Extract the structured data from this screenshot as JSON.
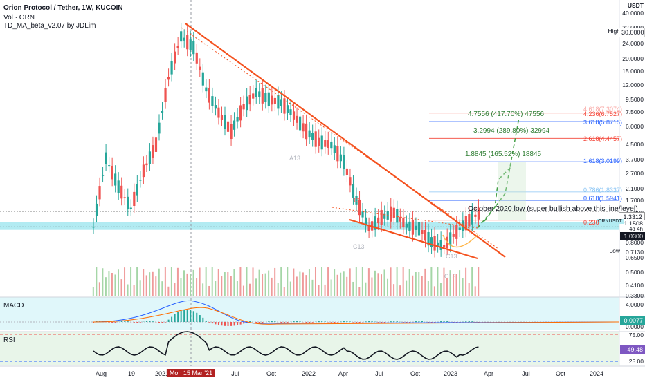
{
  "header": {
    "title": "Orion Protocol / Tether, 1W, KUCOIN",
    "vol_label": "Vol · ORN",
    "indicator_label": "TD_MA_beta_v2.07 by JDLim"
  },
  "axis": {
    "currency": "USDT",
    "price_ticks": [
      "40.0000",
      "32.0000",
      "24.0000",
      "20.0000",
      "15.0000",
      "12.0000",
      "9.5000",
      "7.5000",
      "6.0000",
      "4.5000",
      "3.7000",
      "2.7000",
      "2.1000",
      "1.7000",
      "1.3000",
      "0.8000",
      "0.7130",
      "0.6500",
      "0.5000",
      "0.4100",
      "0.3300"
    ],
    "high_label": "High",
    "high_value": "30.0000",
    "low_label": "Low",
    "current_price": "1.3312",
    "current_price_2": "1.1508",
    "orn_tag": "ORNUSDT",
    "orn_timer": "4d 4h",
    "level_price": "1.0300",
    "date_labels": [
      "Aug",
      "19",
      "2021",
      "Jul",
      "Oct",
      "2022",
      "Apr",
      "Jul",
      "Oct",
      "2023",
      "Apr",
      "Jul",
      "Oct",
      "2024"
    ],
    "date_highlight": "Mon 15 Mar '21"
  },
  "fib": {
    "levels": [
      {
        "label": "4.236(6.7527)",
        "color": "#f44336"
      },
      {
        "label": "3.618(5.8715)",
        "color": "#2962ff"
      },
      {
        "label": "2.618(4.4457)",
        "color": "#f44336"
      },
      {
        "label": "1.618(3.0199)",
        "color": "#2962ff"
      },
      {
        "label": "0.786(1.8337)",
        "color": "#89c4f4"
      },
      {
        "label": "0.618(1.5941)",
        "color": "#2962ff"
      },
      {
        "label": "0.236",
        "color": "#f44336"
      }
    ],
    "top_faint": "4.618(7.3074)"
  },
  "measures": [
    {
      "label": "4.7556 (417.70%) 47556"
    },
    {
      "label": "3.2994 (289.80%) 32994"
    },
    {
      "label": "1.8845 (165.52%) 18845"
    }
  ],
  "annotation": "October 2020 low (super bullish above this line/level)",
  "counts": [
    "A13",
    "13",
    "C13",
    "C13",
    "C13"
  ],
  "macd": {
    "label": "MACD",
    "ticks": [
      "4.0000",
      "0.0000"
    ],
    "value_tag": "0.0077"
  },
  "rsi": {
    "label": "RSI",
    "ticks": [
      "75.00",
      "25.00"
    ],
    "value_tag": "49.48"
  },
  "colors": {
    "up": "#26a69a",
    "down": "#ef5350",
    "trendline": "#f4511e",
    "cyan": "#b2ebf2",
    "green_bg": "#e8f5e9"
  },
  "chart_data": {
    "type": "candlestick",
    "title": "Orion Protocol / Tether, 1W, KUCOIN",
    "y_scale": "log",
    "ylim": [
      0.33,
      40
    ],
    "x_range": [
      "2020-08",
      "2024-02"
    ],
    "series": [
      {
        "name": "ORNUSDT",
        "close_points": [
          [
            "2020-08",
            1.03
          ],
          [
            "2020-09",
            3.2
          ],
          [
            "2020-10",
            2.0
          ],
          [
            "2020-11",
            1.4
          ],
          [
            "2020-12",
            2.6
          ],
          [
            "2021-01",
            4.0
          ],
          [
            "2021-02",
            12.0
          ],
          [
            "2021-03",
            24.0
          ],
          [
            "2021-04",
            20.0
          ],
          [
            "2021-05",
            10.0
          ],
          [
            "2021-06",
            6.8
          ],
          [
            "2021-07",
            5.0
          ],
          [
            "2021-08",
            7.5
          ],
          [
            "2021-09",
            9.5
          ],
          [
            "2021-10",
            8.5
          ],
          [
            "2021-11",
            8.0
          ],
          [
            "2021-12",
            6.5
          ],
          [
            "2022-01",
            5.0
          ],
          [
            "2022-02",
            4.2
          ],
          [
            "2022-03",
            4.0
          ],
          [
            "2022-04",
            3.0
          ],
          [
            "2022-05",
            1.6
          ],
          [
            "2022-06",
            1.0
          ],
          [
            "2022-07",
            1.2
          ],
          [
            "2022-08",
            1.3
          ],
          [
            "2022-09",
            1.05
          ],
          [
            "2022-10",
            1.0
          ],
          [
            "2022-11",
            0.8
          ],
          [
            "2022-12",
            0.75
          ],
          [
            "2023-01",
            0.95
          ],
          [
            "2023-02",
            1.15
          ],
          [
            "2023-03",
            1.33
          ]
        ]
      }
    ]
  }
}
